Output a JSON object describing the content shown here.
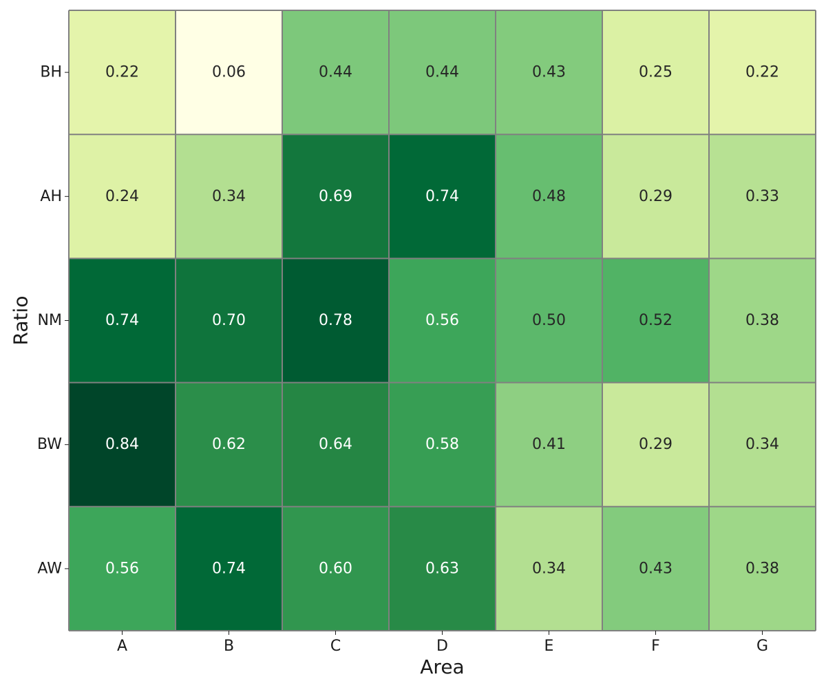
{
  "chart_data": {
    "type": "heatmap",
    "title": "",
    "xlabel": "Area",
    "ylabel": "Ratio",
    "x_categories": [
      "A",
      "B",
      "C",
      "D",
      "E",
      "F",
      "G"
    ],
    "y_categories": [
      "BH",
      "AH",
      "NM",
      "BW",
      "AW"
    ],
    "values": [
      [
        0.22,
        0.06,
        0.44,
        0.44,
        0.43,
        0.25,
        0.22
      ],
      [
        0.24,
        0.34,
        0.69,
        0.74,
        0.48,
        0.29,
        0.33
      ],
      [
        0.74,
        0.7,
        0.78,
        0.56,
        0.5,
        0.52,
        0.38
      ],
      [
        0.84,
        0.62,
        0.64,
        0.58,
        0.41,
        0.29,
        0.34
      ],
      [
        0.56,
        0.74,
        0.6,
        0.63,
        0.34,
        0.43,
        0.38
      ]
    ],
    "value_range": [
      0.06,
      0.84
    ],
    "colormap": "YlGn",
    "colormap_stops": [
      "#ffffe5",
      "#f7fcb9",
      "#d9f0a3",
      "#addd8e",
      "#78c679",
      "#41ab5d",
      "#238443",
      "#006837",
      "#004529"
    ],
    "grid_line_color": "#808080",
    "text_color_dark": "#262626",
    "text_color_light": "#ffffff",
    "legend": "none"
  }
}
